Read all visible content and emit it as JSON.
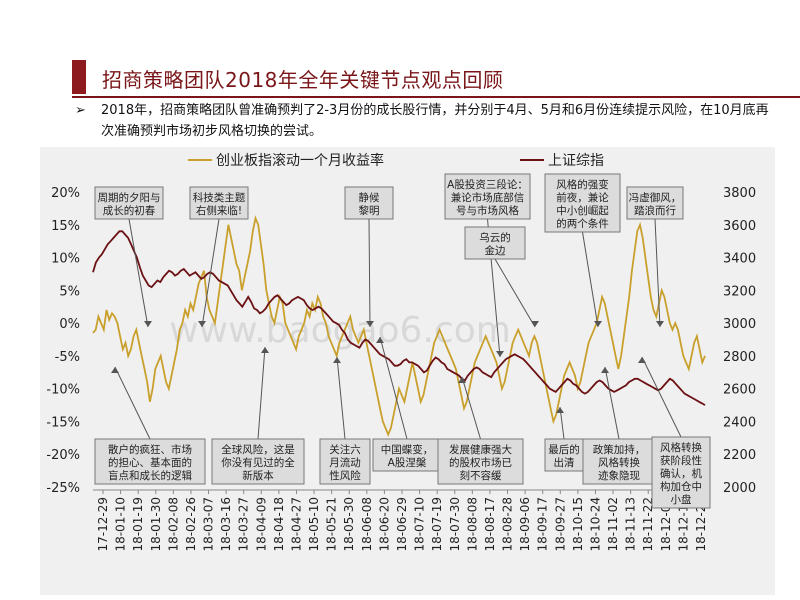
{
  "page": {
    "title": "招商策略团队2018年全年关键节点观点回顾",
    "bullet": "➢",
    "description": "2018年，招商策略团队曾准确预判了2-3月份的成长股行情，并分别于4月、5月和6月份连续提示风险，在10月底再次准确预判市场初步风格切换的尝试。",
    "watermark": "www.baogao6.com"
  },
  "colors": {
    "title": "#7a1619",
    "series_chinext": "#c9a02c",
    "series_shanghai": "#6b1013",
    "panel_bg": "#f0f0f0",
    "box_bg": "#dcdcdc"
  },
  "chart_data": {
    "type": "line",
    "x_ticks": [
      "17-12-29",
      "18-01-10",
      "18-01-19",
      "18-01-30",
      "18-02-08",
      "18-02-26",
      "18-03-07",
      "18-03-16",
      "18-03-27",
      "18-04-09",
      "18-04-18",
      "18-04-27",
      "18-05-10",
      "18-05-21",
      "18-05-30",
      "18-06-08",
      "18-06-20",
      "18-06-29",
      "18-07-10",
      "18-07-19",
      "18-07-30",
      "18-08-08",
      "18-08-17",
      "18-08-28",
      "18-09-06",
      "18-09-17",
      "18-09-27",
      "18-10-15",
      "18-10-24",
      "18-11-02",
      "18-11-13",
      "18-11-22",
      "18-12-03",
      "18-12-12",
      "18-12-21"
    ],
    "left_axis": {
      "ticks": [
        "20%",
        "15%",
        "10%",
        "5%",
        "0%",
        "-5%",
        "-10%",
        "-15%",
        "-20%",
        "-25%"
      ],
      "range": [
        -25,
        20
      ]
    },
    "right_axis": {
      "ticks": [
        "3800",
        "3600",
        "3400",
        "3200",
        "3000",
        "2800",
        "2600",
        "2400",
        "2200",
        "2000"
      ],
      "range": [
        2000,
        3800
      ]
    },
    "legend_position": "top",
    "grid": false,
    "series": [
      {
        "name": "创业板指滚动一个月收益率",
        "axis": "left",
        "values": [
          -1.5,
          -1,
          1,
          0,
          -1,
          2,
          0.5,
          1.5,
          1,
          0,
          -2,
          -4,
          -3,
          -5,
          -4,
          -2,
          -1,
          -3,
          -5,
          -7,
          -9,
          -12,
          -10,
          -7,
          -6,
          -5,
          -7,
          -9,
          -10,
          -8,
          -6,
          -4,
          -1,
          0,
          2,
          1,
          3,
          2,
          4,
          6,
          7,
          8,
          4,
          2,
          1,
          0,
          3,
          6,
          9,
          12,
          15,
          13,
          11,
          9,
          8,
          5,
          7,
          9,
          11,
          14,
          16,
          15,
          12,
          9,
          5,
          3,
          1,
          0,
          2,
          4,
          3,
          0,
          -1,
          -2,
          -3,
          -4,
          -2,
          -1,
          0,
          2,
          1,
          3,
          2,
          4,
          3,
          1,
          0,
          -2,
          -3,
          -4,
          -5,
          -3,
          -2,
          -1,
          0,
          1,
          -1,
          -2,
          -3,
          -2,
          -1,
          -3,
          -5,
          -7,
          -9,
          -11,
          -13,
          -15,
          -16,
          -17,
          -16,
          -14,
          -12,
          -10,
          -11,
          -12,
          -10,
          -8,
          -6,
          -8,
          -10,
          -12,
          -11,
          -9,
          -7,
          -5,
          -3,
          -2,
          -1,
          -2,
          -3,
          -4,
          -5,
          -6,
          -7,
          -9,
          -11,
          -13,
          -12,
          -10,
          -8,
          -6,
          -5,
          -4,
          -3,
          -2,
          -3,
          -4,
          -5,
          -6,
          -8,
          -10,
          -9,
          -7,
          -5,
          -3,
          -2,
          -1,
          -2,
          -3,
          -4,
          -5,
          -3,
          -2,
          -3,
          -5,
          -7,
          -9,
          -11,
          -13,
          -15,
          -14,
          -12,
          -10,
          -8,
          -7,
          -6,
          -7,
          -8,
          -10,
          -9,
          -7,
          -5,
          -3,
          -2,
          -1,
          0,
          2,
          4,
          3,
          1,
          -1,
          -3,
          -5,
          -7,
          -5,
          -2,
          1,
          4,
          8,
          11,
          14,
          15,
          13,
          10,
          7,
          4,
          2,
          1,
          3,
          5,
          4,
          2,
          0,
          -1,
          0,
          -1,
          -3,
          -5,
          -6,
          -7,
          -5,
          -3,
          -2,
          -4,
          -6,
          -5
        ]
      },
      {
        "name": "上证综指",
        "axis": "right",
        "values": [
          3310,
          3370,
          3400,
          3420,
          3450,
          3480,
          3500,
          3520,
          3540,
          3560,
          3560,
          3540,
          3520,
          3480,
          3440,
          3400,
          3340,
          3290,
          3260,
          3230,
          3220,
          3240,
          3260,
          3250,
          3280,
          3300,
          3320,
          3310,
          3290,
          3300,
          3320,
          3330,
          3310,
          3290,
          3300,
          3310,
          3290,
          3270,
          3280,
          3300,
          3310,
          3300,
          3280,
          3260,
          3250,
          3240,
          3230,
          3200,
          3170,
          3140,
          3120,
          3100,
          3130,
          3160,
          3130,
          3090,
          3080,
          3060,
          3070,
          3090,
          3120,
          3140,
          3160,
          3170,
          3150,
          3130,
          3110,
          3120,
          3140,
          3150,
          3160,
          3150,
          3140,
          3110,
          3090,
          3080,
          3090,
          3100,
          3090,
          3070,
          3050,
          3030,
          3010,
          3000,
          2990,
          2960,
          2940,
          2900,
          2880,
          2870,
          2860,
          2850,
          2880,
          2900,
          2890,
          2870,
          2850,
          2830,
          2810,
          2800,
          2790,
          2780,
          2760,
          2740,
          2740,
          2750,
          2770,
          2780,
          2760,
          2760,
          2750,
          2740,
          2720,
          2700,
          2710,
          2740,
          2770,
          2790,
          2780,
          2760,
          2750,
          2720,
          2710,
          2700,
          2690,
          2680,
          2660,
          2650,
          2680,
          2700,
          2720,
          2730,
          2720,
          2700,
          2690,
          2680,
          2670,
          2700,
          2720,
          2740,
          2760,
          2780,
          2790,
          2800,
          2810,
          2800,
          2790,
          2780,
          2760,
          2740,
          2720,
          2700,
          2680,
          2660,
          2640,
          2620,
          2600,
          2590,
          2580,
          2600,
          2620,
          2640,
          2660,
          2650,
          2630,
          2620,
          2600,
          2580,
          2570,
          2580,
          2600,
          2620,
          2640,
          2650,
          2640,
          2620,
          2600,
          2590,
          2580,
          2590,
          2600,
          2610,
          2620,
          2640,
          2650,
          2660,
          2660,
          2650,
          2640,
          2630,
          2620,
          2610,
          2600,
          2590,
          2600,
          2620,
          2640,
          2660,
          2650,
          2630,
          2610,
          2590,
          2570,
          2560,
          2550,
          2540,
          2530,
          2520,
          2510,
          2500
        ]
      }
    ]
  },
  "annotations": {
    "top": [
      {
        "text": "周期的夕阳与\n成长的初春"
      },
      {
        "text": "科技类主题\n右侧来临!"
      },
      {
        "text": "静候\n黎明"
      },
      {
        "text": "A股投资三段论：\n兼论市场底部信\n号与市场风格"
      },
      {
        "text": "乌云的\n金边"
      },
      {
        "text": "风格的强变\n前夜，兼论\n中小创崛起\n的两个条件"
      },
      {
        "text": "冯虚御风，\n踏浪而行"
      }
    ],
    "bottom": [
      {
        "text": "散户的疯狂、市场\n的担心、基本面的\n盲点和成长的逻辑"
      },
      {
        "text": "全球风险，这是\n你没有见过的全\n新版本"
      },
      {
        "text": "关注六\n月流动\n性风险"
      },
      {
        "text": "中国蝶变，\nA股涅槃"
      },
      {
        "text": "发展健康强大\n的股权市场已\n刻不容缓"
      },
      {
        "text": "最后的\n出清"
      },
      {
        "text": "政策加持，\n风格转换\n迹象隐现"
      },
      {
        "text": "风格转换\n获阶段性\n确认，机\n构加仓中\n小盘"
      }
    ]
  }
}
